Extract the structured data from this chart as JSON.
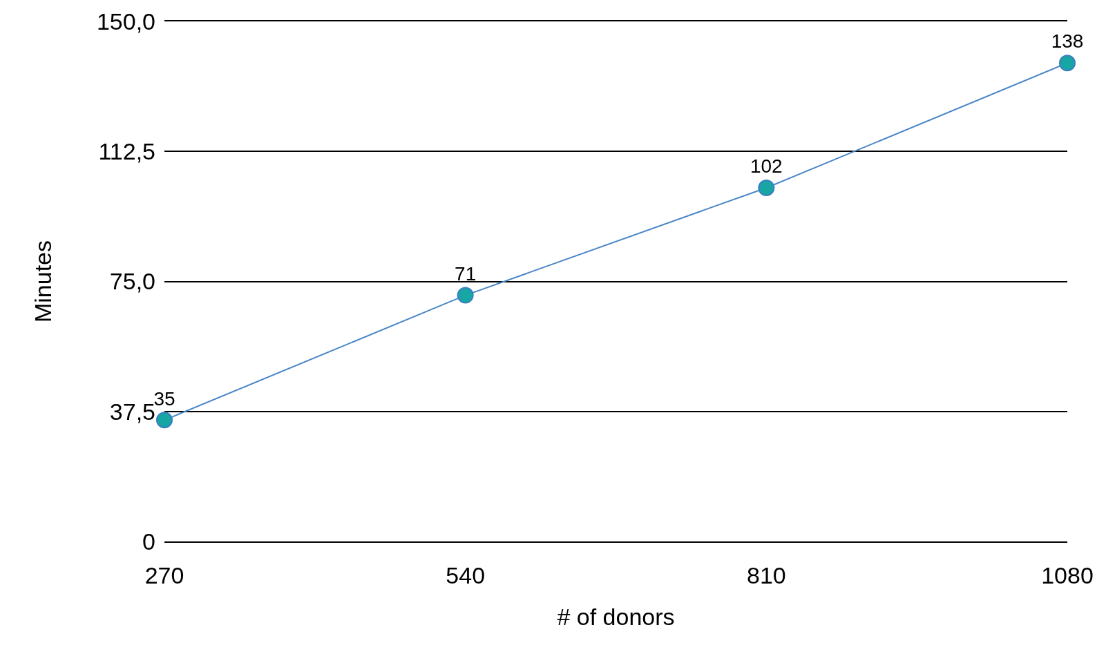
{
  "chart_data": {
    "type": "line",
    "xlabel": "# of donors",
    "ylabel": "Minutes",
    "categories": [
      "270",
      "540",
      "810",
      "1080"
    ],
    "series": [
      {
        "color": "#4a86c8",
        "colors": [
          "#17a6a3",
          "#17a6a3",
          "#17a6a3",
          "#17a6a3"
        ],
        "values": [
          35,
          71,
          102,
          138
        ]
      }
    ],
    "ylim": [
      0,
      150
    ],
    "yticks": [
      0,
      {
        "value": 37.5,
        "label": "37,5"
      },
      {
        "value": 75,
        "label": "75,0"
      },
      {
        "value": 112.5,
        "label": "112,5"
      },
      {
        "value": 150,
        "label": "150,0"
      }
    ],
    "grid": "y",
    "marker": "circle",
    "line_style": "solid",
    "data_labels": true,
    "legend": false
  }
}
